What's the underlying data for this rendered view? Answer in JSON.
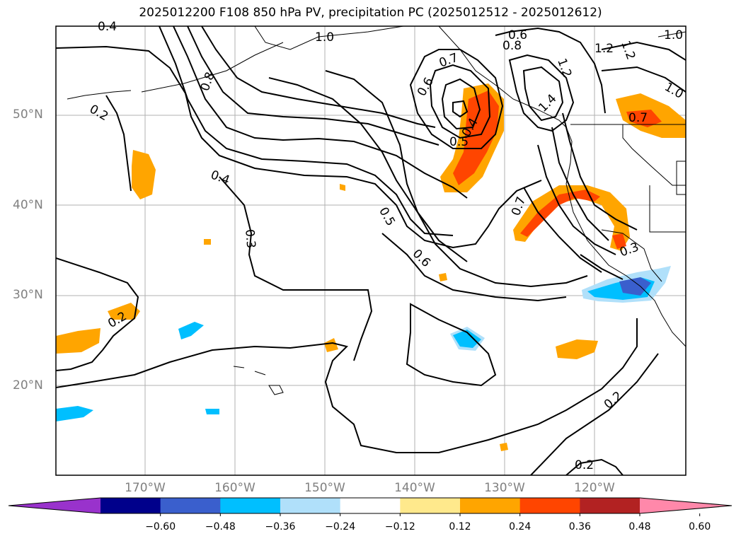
{
  "title": "2025012200 F108 850 hPa PV, precipitation PC (2025012512 - 2025012612)",
  "lat_labels": [
    "50°N",
    "40°N",
    "30°N",
    "20°N"
  ],
  "lon_labels": [
    "170°W",
    "160°W",
    "150°W",
    "140°W",
    "130°W",
    "120°W"
  ],
  "colorbar": {
    "ticks": [
      "−0.60",
      "−0.48",
      "−0.36",
      "−0.24",
      "−0.12",
      "0.12",
      "0.24",
      "0.36",
      "0.48",
      "0.60"
    ],
    "colors": [
      "#9932cc",
      "#00008b",
      "#3a5fcd",
      "#00bfff",
      "#b0e0fa",
      "#ffffff",
      "#ffe98c",
      "#ffa500",
      "#ff4500",
      "#b22222",
      "#ff88aa"
    ]
  },
  "contour_labels": [
    {
      "text": "0.4"
    },
    {
      "text": "1.0"
    },
    {
      "text": "0.8"
    },
    {
      "text": "0.2"
    },
    {
      "text": "0.4"
    },
    {
      "text": "0.3"
    },
    {
      "text": "0.5"
    },
    {
      "text": "0.6"
    },
    {
      "text": "0.2"
    },
    {
      "text": "0.7"
    },
    {
      "text": "0.6"
    },
    {
      "text": "0.4"
    },
    {
      "text": "0.5"
    },
    {
      "text": "0.6"
    },
    {
      "text": "0.8"
    },
    {
      "text": "1.2"
    },
    {
      "text": "1.4"
    },
    {
      "text": "1.2"
    },
    {
      "text": "1.2"
    },
    {
      "text": "1.0"
    },
    {
      "text": "0.7"
    },
    {
      "text": "0.7"
    },
    {
      "text": "0.3"
    },
    {
      "text": "0.2"
    },
    {
      "text": "0.2"
    },
    {
      "text": "1.0"
    }
  ]
}
